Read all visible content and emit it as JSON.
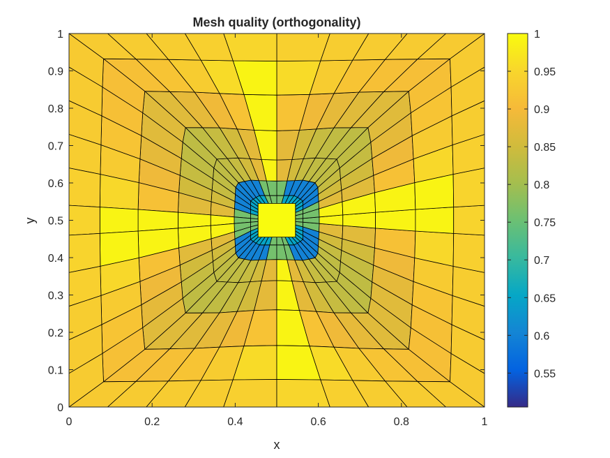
{
  "chart_data": {
    "type": "heatmap",
    "title": "Mesh quality (orthogonality)",
    "xlabel": "x",
    "ylabel": "y",
    "xlim": [
      0,
      1
    ],
    "ylim": [
      0,
      1
    ],
    "xticks": [
      "0",
      "0.2",
      "0.4",
      "0.6",
      "0.8",
      "1"
    ],
    "yticks": [
      "0",
      "0.1",
      "0.2",
      "0.3",
      "0.4",
      "0.5",
      "0.6",
      "0.7",
      "0.8",
      "0.9",
      "1"
    ],
    "colorbar": {
      "colormap": "parula",
      "min": 0.505,
      "max": 1.0,
      "ticks": [
        "0.55",
        "0.6",
        "0.65",
        "0.7",
        "0.75",
        "0.8",
        "0.85",
        "0.9",
        "0.95",
        "1"
      ]
    },
    "mesh": {
      "description_units": "mesh node coordinates in data units (x, y in [0,1])",
      "outer_top": [
        [
          0,
          1
        ],
        [
          0.093,
          1
        ],
        [
          0.186,
          1
        ],
        [
          0.279,
          1
        ],
        [
          0.372,
          1
        ],
        [
          0.5,
          1
        ],
        [
          0.628,
          1
        ],
        [
          0.721,
          1
        ],
        [
          0.814,
          1
        ],
        [
          0.907,
          1
        ],
        [
          1,
          1
        ]
      ],
      "outer_bottom": [
        [
          0,
          0
        ],
        [
          0.093,
          0
        ],
        [
          0.186,
          0
        ],
        [
          0.279,
          0
        ],
        [
          0.372,
          0
        ],
        [
          0.5,
          0
        ],
        [
          0.628,
          0
        ],
        [
          0.721,
          0
        ],
        [
          0.814,
          0
        ],
        [
          0.907,
          0
        ],
        [
          1,
          0
        ]
      ],
      "outer_left": [
        [
          0,
          0
        ],
        [
          0,
          0.09
        ],
        [
          0,
          0.18
        ],
        [
          0,
          0.27
        ],
        [
          0,
          0.36
        ],
        [
          0,
          0.46
        ],
        [
          0,
          0.54
        ],
        [
          0,
          0.64
        ],
        [
          0,
          0.73
        ],
        [
          0,
          0.82
        ],
        [
          0,
          0.91
        ],
        [
          0,
          1
        ]
      ],
      "outer_right": [
        [
          1,
          0
        ],
        [
          1,
          0.09
        ],
        [
          1,
          0.18
        ],
        [
          1,
          0.27
        ],
        [
          1,
          0.36
        ],
        [
          1,
          0.46
        ],
        [
          1,
          0.54
        ],
        [
          1,
          0.64
        ],
        [
          1,
          0.73
        ],
        [
          1,
          0.82
        ],
        [
          1,
          0.91
        ],
        [
          1,
          1
        ]
      ],
      "inner_square": [
        [
          0.455,
          0.455
        ],
        [
          0.545,
          0.455
        ],
        [
          0.545,
          0.545
        ],
        [
          0.455,
          0.545
        ]
      ],
      "octagon": [
        [
          0.437,
          0.448
        ],
        [
          0.457,
          0.434
        ],
        [
          0.543,
          0.434
        ],
        [
          0.563,
          0.448
        ],
        [
          0.563,
          0.552
        ],
        [
          0.543,
          0.566
        ],
        [
          0.457,
          0.566
        ],
        [
          0.437,
          0.552
        ]
      ],
      "quality_summary": {
        "inner_square": 1.0,
        "octagon_ring": 0.76,
        "corner_wedges": 0.6,
        "diagonal_band_near": 0.83,
        "diagonal_band_far": 0.87,
        "axis_aligned_strips": 0.99,
        "outer_border_cells": 0.95
      }
    }
  }
}
